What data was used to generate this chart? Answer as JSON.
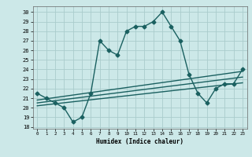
{
  "xlabel": "Humidex (Indice chaleur)",
  "ylabel": "",
  "bg_color": "#cce8e8",
  "grid_color": "#aacccc",
  "line_color": "#1a6060",
  "xlim": [
    -0.5,
    23.5
  ],
  "ylim": [
    17.8,
    30.6
  ],
  "yticks": [
    18,
    19,
    20,
    21,
    22,
    23,
    24,
    25,
    26,
    27,
    28,
    29,
    30
  ],
  "xticks": [
    0,
    1,
    2,
    3,
    4,
    5,
    6,
    7,
    8,
    9,
    10,
    11,
    12,
    13,
    14,
    15,
    16,
    17,
    18,
    19,
    20,
    21,
    22,
    23
  ],
  "main_x": [
    0,
    1,
    2,
    3,
    4,
    5,
    6,
    7,
    8,
    9,
    10,
    11,
    12,
    13,
    14,
    15,
    16,
    17,
    18,
    19,
    20,
    21,
    22,
    23
  ],
  "main_y": [
    21.5,
    21.0,
    20.5,
    20.0,
    18.5,
    19.0,
    21.5,
    27.0,
    26.0,
    25.5,
    28.0,
    28.5,
    28.5,
    29.0,
    30.0,
    28.5,
    27.0,
    23.5,
    21.5,
    20.5,
    22.0,
    22.5,
    22.5,
    24.0
  ],
  "ref_line1_x": [
    0,
    23
  ],
  "ref_line1_y": [
    20.8,
    23.8
  ],
  "ref_line2_x": [
    0,
    23
  ],
  "ref_line2_y": [
    20.5,
    23.2
  ],
  "ref_line3_x": [
    0,
    23
  ],
  "ref_line3_y": [
    20.2,
    22.6
  ],
  "marker": "D",
  "markersize": 2.5,
  "linewidth": 1.0
}
